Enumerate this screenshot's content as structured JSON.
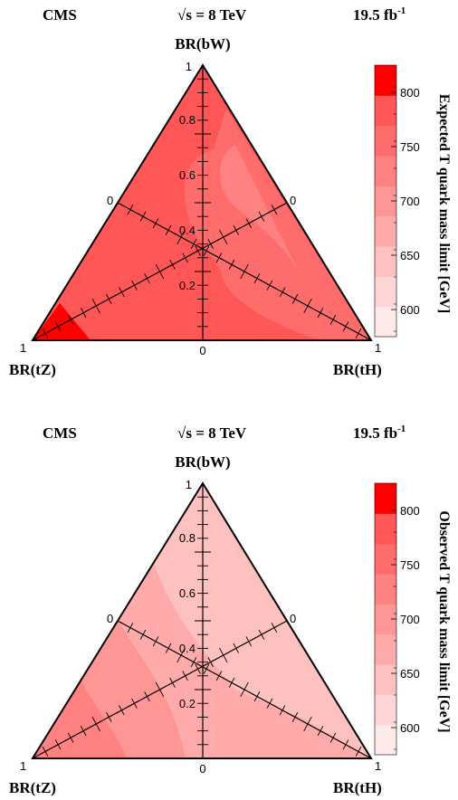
{
  "header": {
    "cms": "CMS",
    "energy": "s = 8 TeV",
    "lumi": "19.5 fb",
    "lumi_exp": "-1"
  },
  "colors": {
    "levels": [
      "#ffeaea",
      "#ffd5d5",
      "#ffc0c0",
      "#ffabab",
      "#ff9696",
      "#ff8181",
      "#ff6c6c",
      "#ff5757",
      "#ff0000"
    ],
    "line": "#000000"
  },
  "chart_data": [
    {
      "type": "heatmap",
      "subtype": "ternary",
      "corner_labels": {
        "top": "BR(bW)",
        "left": "BR(tZ)",
        "right": "BR(tH)"
      },
      "axis_tick_labels": [
        "0.2",
        "0.4",
        "0.6",
        "0.8"
      ],
      "corner_numbers": {
        "top": "1",
        "left": "1",
        "right": "1",
        "left_edge_mid": "0",
        "right_edge_mid": "0",
        "bottom_mid": "0"
      },
      "zlabel": "Expected T quark mass limit [GeV]",
      "zlim": [
        575,
        825
      ],
      "z_ticks": [
        "600",
        "650",
        "700",
        "750",
        "800"
      ],
      "regions": [
        {
          "description": "bulk",
          "level": 7
        },
        {
          "description": "central band",
          "level": 6
        },
        {
          "description": "tZ corner",
          "level": 8
        }
      ]
    },
    {
      "type": "heatmap",
      "subtype": "ternary",
      "corner_labels": {
        "top": "BR(bW)",
        "left": "BR(tZ)",
        "right": "BR(tH)"
      },
      "axis_tick_labels": [
        "0.2",
        "0.4",
        "0.6",
        "0.8"
      ],
      "corner_numbers": {
        "top": "1",
        "left": "1",
        "right": "1",
        "left_edge_mid": "0",
        "right_edge_mid": "0",
        "bottom_mid": "0"
      },
      "zlabel": "Observed T quark mass limit [GeV]",
      "zlim": [
        575,
        825
      ],
      "z_ticks": [
        "600",
        "650",
        "700",
        "750",
        "800"
      ],
      "regions": [
        {
          "description": "bulk",
          "level": 3
        },
        {
          "description": "left band",
          "level": 4
        },
        {
          "description": "tZ corner",
          "level": 5
        }
      ]
    }
  ]
}
